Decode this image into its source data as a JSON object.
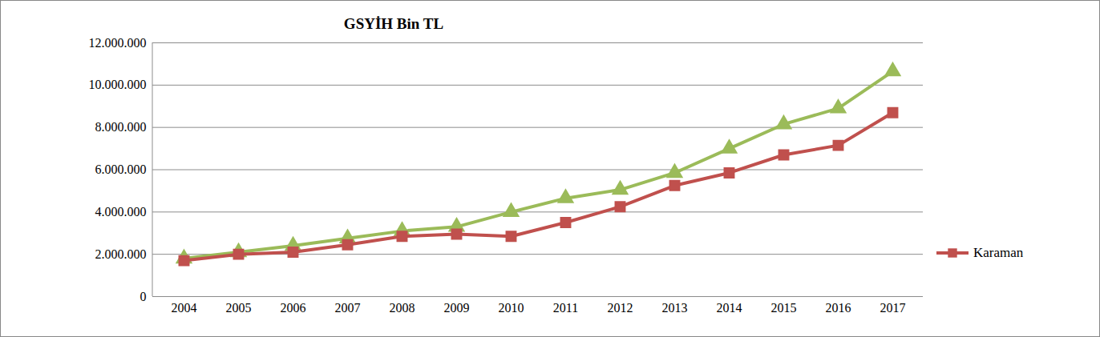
{
  "chart_data": {
    "type": "line",
    "title": "GSYİH Bin TL",
    "categories": [
      "2004",
      "2005",
      "2006",
      "2007",
      "2008",
      "2009",
      "2010",
      "2011",
      "2012",
      "2013",
      "2014",
      "2015",
      "2016",
      "2017"
    ],
    "series": [
      {
        "name": "Karaman",
        "color": "#c0504d",
        "marker": "square",
        "values": [
          1700000,
          2000000,
          2100000,
          2450000,
          2850000,
          2950000,
          2850000,
          3500000,
          4250000,
          5250000,
          5850000,
          6700000,
          7150000,
          8700000
        ]
      },
      {
        "color": "#9bbb59",
        "marker": "triangle",
        "values": [
          1800000,
          2100000,
          2400000,
          2750000,
          3100000,
          3300000,
          4000000,
          4650000,
          5050000,
          5850000,
          7000000,
          8150000,
          8900000,
          10650000
        ]
      }
    ],
    "ylim": [
      0,
      12000000
    ],
    "yticks": [
      0,
      {
        "value": 2000000,
        "label": "2.000.000"
      },
      {
        "value": 4000000,
        "label": "4.000.000"
      },
      {
        "value": 6000000,
        "label": "6.000.000"
      },
      {
        "value": 8000000,
        "label": "8.000.000"
      },
      {
        "value": 10000000,
        "label": "10.000.000"
      },
      {
        "value": 12000000,
        "label": "12.000.000"
      }
    ],
    "grid": true,
    "legend": "right"
  }
}
